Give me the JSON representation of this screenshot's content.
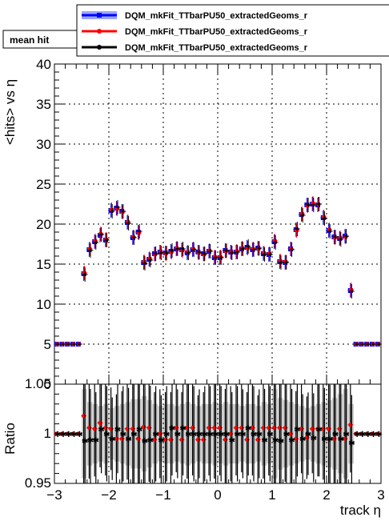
{
  "chart_data": [
    {
      "type": "scatter",
      "panel": "main",
      "title": "mean hit",
      "xlabel": "track η",
      "ylabel": "<hits> vs η",
      "xlim": [
        -3,
        3
      ],
      "ylim": [
        0,
        40
      ],
      "yticks": [
        "0",
        "5",
        "10",
        "15",
        "20",
        "25",
        "30",
        "35",
        "40"
      ],
      "grid": true,
      "legend_position": "top-right",
      "legend": [
        {
          "name": "DQM_mkFit_TTbarPU50_extractedGeoms_r",
          "color": "#0000ff"
        },
        {
          "name": "DQM_mkFit_TTbarPU50_extractedGeoms_r",
          "color": "#ff0000"
        },
        {
          "name": "DQM_mkFit_TTbarPU50_extractedGeoms_r",
          "color": "#000000"
        }
      ],
      "x": [
        -2.95,
        -2.85,
        -2.75,
        -2.65,
        -2.55,
        -2.45,
        -2.35,
        -2.25,
        -2.15,
        -2.05,
        -1.95,
        -1.85,
        -1.75,
        -1.65,
        -1.55,
        -1.45,
        -1.35,
        -1.25,
        -1.15,
        -1.05,
        -0.95,
        -0.85,
        -0.75,
        -0.65,
        -0.55,
        -0.45,
        -0.35,
        -0.25,
        -0.15,
        -0.05,
        0.05,
        0.15,
        0.25,
        0.35,
        0.45,
        0.55,
        0.65,
        0.75,
        0.85,
        0.95,
        1.05,
        1.15,
        1.25,
        1.35,
        1.45,
        1.55,
        1.65,
        1.75,
        1.85,
        1.95,
        2.05,
        2.15,
        2.25,
        2.35,
        2.45,
        2.55,
        2.65,
        2.75,
        2.85,
        2.95
      ],
      "series": [
        {
          "color": "#0000ff",
          "values": [
            5,
            5,
            5,
            5,
            5,
            13.8,
            16.8,
            17.8,
            18.6,
            18.0,
            21.7,
            22.0,
            21.6,
            20.2,
            18.3,
            19.0,
            15.2,
            15.6,
            16.3,
            16.5,
            16.4,
            16.6,
            16.9,
            16.8,
            16.4,
            16.8,
            16.5,
            16.3,
            16.6,
            15.8,
            15.8,
            16.7,
            16.5,
            16.5,
            16.9,
            17.1,
            16.8,
            17.0,
            16.3,
            16.2,
            17.8,
            15.3,
            15.2,
            16.9,
            19.3,
            21.2,
            22.4,
            22.5,
            22.4,
            20.8,
            19.2,
            18.4,
            18.2,
            18.5,
            11.7,
            5,
            5,
            5,
            5,
            5
          ]
        },
        {
          "color": "#ff0000",
          "values": [
            5,
            5,
            5,
            5,
            5,
            13.9,
            16.9,
            17.9,
            18.8,
            18.1,
            21.8,
            21.9,
            21.5,
            20.3,
            18.4,
            18.9,
            15.3,
            15.7,
            16.2,
            16.5,
            16.3,
            16.5,
            17.0,
            16.7,
            16.5,
            16.9,
            16.4,
            16.2,
            16.7,
            15.9,
            15.9,
            16.6,
            16.5,
            16.6,
            17.0,
            17.0,
            16.9,
            16.9,
            16.4,
            16.3,
            17.9,
            15.4,
            15.3,
            16.9,
            19.2,
            21.3,
            22.3,
            22.6,
            22.5,
            20.9,
            19.3,
            18.3,
            18.3,
            18.4,
            11.8,
            5,
            5,
            5,
            5,
            5
          ]
        },
        {
          "color": "#000000",
          "values": [
            5,
            5,
            5,
            5,
            5,
            13.7,
            16.7,
            17.7,
            18.7,
            18.0,
            21.6,
            22.1,
            21.6,
            20.1,
            18.3,
            19.1,
            15.1,
            15.5,
            16.3,
            16.4,
            16.4,
            16.7,
            16.9,
            16.9,
            16.4,
            16.8,
            16.5,
            16.3,
            16.6,
            15.8,
            15.8,
            16.7,
            16.4,
            16.5,
            16.9,
            17.2,
            16.8,
            17.0,
            16.2,
            16.2,
            17.7,
            15.2,
            15.2,
            16.8,
            19.4,
            21.1,
            22.4,
            22.4,
            22.5,
            20.7,
            19.1,
            18.4,
            18.1,
            18.5,
            11.6,
            5,
            5,
            5,
            5,
            5
          ]
        }
      ]
    },
    {
      "type": "scatter",
      "panel": "ratio",
      "ylabel": "Ratio",
      "xlabel": "track η",
      "xlim": [
        -3,
        3
      ],
      "ylim": [
        0.95,
        1.05
      ],
      "xticks": [
        "−3",
        "−2",
        "−1",
        "0",
        "1",
        "2",
        "3"
      ],
      "yticks": [
        "0.95",
        "1",
        "1.05"
      ],
      "grid": true,
      "band": {
        "color": "#cccccc",
        "halfwidth": [
          0,
          0,
          0,
          0,
          0,
          0.045,
          0.032,
          0.03,
          0.028,
          0.03,
          0.026,
          0.028,
          0.03,
          0.032,
          0.035,
          0.035,
          0.038,
          0.034,
          0.03,
          0.028,
          0.03,
          0.03,
          0.028,
          0.03,
          0.032,
          0.03,
          0.028,
          0.03,
          0.03,
          0.032,
          0.03,
          0.032,
          0.03,
          0.03,
          0.028,
          0.03,
          0.03,
          0.028,
          0.032,
          0.03,
          0.045,
          0.036,
          0.034,
          0.032,
          0.03,
          0.028,
          0.026,
          0.028,
          0.03,
          0.032,
          0.034,
          0.036,
          0.04,
          0.045,
          0.03,
          0,
          0,
          0,
          0,
          0
        ]
      },
      "series": [
        {
          "color": "#ff0000",
          "values": [
            1,
            1,
            1,
            1,
            1,
            1.018,
            1.006,
            1.005,
            1.011,
            1.006,
            1.005,
            0.995,
            0.995,
            1.005,
            1.005,
            0.995,
            1.007,
            1.006,
            0.994,
            1.0,
            0.994,
            0.994,
            1.006,
            0.994,
            1.006,
            1.006,
            0.994,
            0.994,
            1.006,
            1.006,
            1.006,
            0.994,
            1.0,
            1.006,
            1.006,
            0.994,
            1.006,
            0.994,
            1.006,
            1.006,
            1.006,
            1.006,
            1.006,
            1.0,
            0.995,
            1.005,
            0.996,
            1.005,
            1.005,
            1.005,
            1.005,
            0.995,
            1.005,
            0.995,
            1.009,
            1,
            1,
            1,
            1,
            1
          ]
        },
        {
          "color": "#000000",
          "marker": "star",
          "values": [
            1,
            1,
            1,
            1,
            1,
            0.993,
            0.994,
            0.994,
            1.005,
            1.0,
            0.995,
            1.005,
            1.0,
            0.995,
            1.0,
            1.005,
            0.993,
            0.994,
            1.0,
            0.994,
            1.0,
            1.006,
            1.0,
            1.006,
            1.0,
            1.0,
            1.0,
            1.0,
            1.0,
            1.0,
            1.0,
            1.0,
            0.994,
            1.0,
            1.0,
            1.006,
            1.0,
            1.0,
            0.994,
            1.0,
            0.994,
            0.993,
            1.0,
            0.994,
            1.005,
            0.995,
            1.0,
            0.996,
            1.005,
            0.995,
            0.995,
            1.0,
            0.995,
            1.0,
            0.991,
            1,
            1,
            1,
            1,
            1
          ]
        }
      ]
    }
  ]
}
